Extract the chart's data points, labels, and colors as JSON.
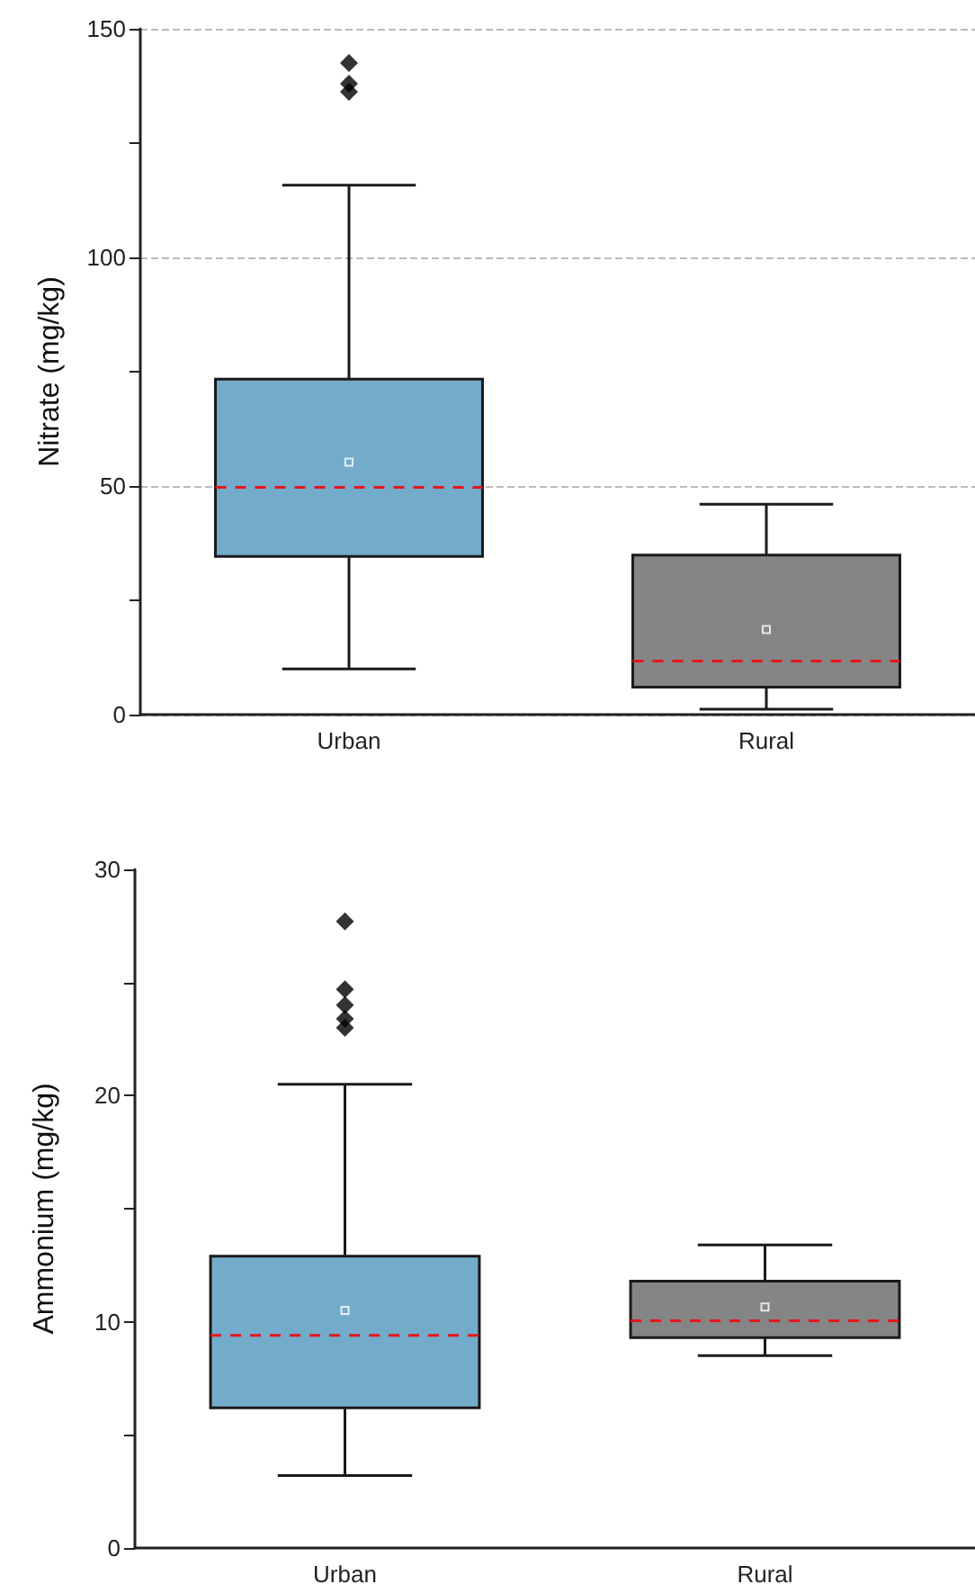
{
  "chart_data": [
    {
      "type": "box",
      "ylabel": "Nitrate (mg/kg)",
      "categories": [
        "Urban",
        "Rural"
      ],
      "colors": [
        "#73abcb",
        "#858585"
      ],
      "boxes": [
        {
          "low": 10,
          "q1": 34.6,
          "median": 49.7,
          "q3": 73.4,
          "high": 115.8,
          "mean": 55.2,
          "outliers": [
            142.5,
            138,
            136.2
          ]
        },
        {
          "low": 1.2,
          "q1": 6,
          "median": 11.7,
          "q3": 34.9,
          "high": 46,
          "mean": 18.6
        }
      ],
      "ylim": [
        0,
        150
      ],
      "yticks": [
        0,
        {
          "value": 25,
          "label": null
        },
        50,
        {
          "value": 75,
          "label": null
        },
        100,
        {
          "value": 125,
          "label": null
        },
        150
      ],
      "grid": "y",
      "marker": "diamond"
    },
    {
      "type": "box",
      "ylabel": "Ammonium (mg/kg)",
      "categories": [
        "Urban",
        "Rural"
      ],
      "colors": [
        "#73abcb",
        "#858585"
      ],
      "boxes": [
        {
          "low": 3.2,
          "q1": 6.2,
          "median": 9.4,
          "q3": 12.9,
          "high": 20.5,
          "mean": 10.5,
          "outliers": [
            27.7,
            24.7,
            24.0,
            23.4,
            23.0
          ]
        },
        {
          "low": 8.5,
          "q1": 9.3,
          "median": 10.05,
          "q3": 11.8,
          "high": 13.4,
          "mean": 10.65
        }
      ],
      "ylim": [
        0,
        30
      ],
      "yticks": [
        0,
        {
          "value": 5,
          "label": null
        },
        10,
        {
          "value": 15,
          "label": null
        },
        20,
        {
          "value": 25,
          "label": null
        },
        30
      ],
      "grid": false,
      "marker": "diamond"
    }
  ]
}
